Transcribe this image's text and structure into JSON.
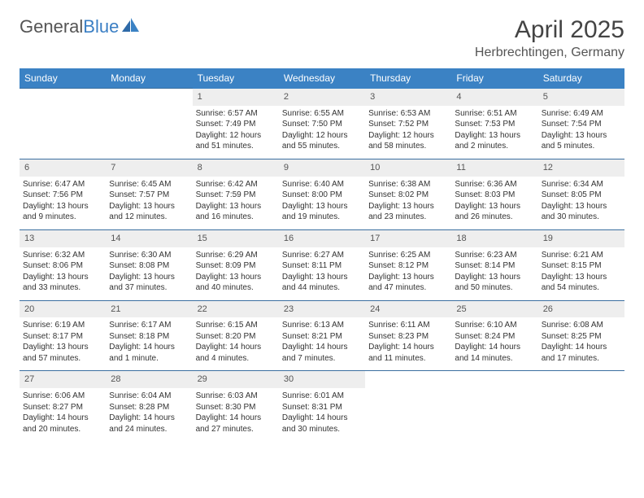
{
  "logo": {
    "text1": "General",
    "text2": "Blue"
  },
  "title": "April 2025",
  "location": "Herbrechtingen, Germany",
  "colors": {
    "header_bg": "#3b82c4",
    "header_text": "#ffffff",
    "daynum_bg": "#eeeeee",
    "border": "#3b6fa0",
    "body_text": "#333333",
    "logo_gray": "#555555",
    "logo_blue": "#3b7fc4"
  },
  "dayHeaders": [
    "Sunday",
    "Monday",
    "Tuesday",
    "Wednesday",
    "Thursday",
    "Friday",
    "Saturday"
  ],
  "weeks": [
    [
      null,
      null,
      {
        "n": "1",
        "sr": "6:57 AM",
        "ss": "7:49 PM",
        "dl": "12 hours and 51 minutes."
      },
      {
        "n": "2",
        "sr": "6:55 AM",
        "ss": "7:50 PM",
        "dl": "12 hours and 55 minutes."
      },
      {
        "n": "3",
        "sr": "6:53 AM",
        "ss": "7:52 PM",
        "dl": "12 hours and 58 minutes."
      },
      {
        "n": "4",
        "sr": "6:51 AM",
        "ss": "7:53 PM",
        "dl": "13 hours and 2 minutes."
      },
      {
        "n": "5",
        "sr": "6:49 AM",
        "ss": "7:54 PM",
        "dl": "13 hours and 5 minutes."
      }
    ],
    [
      {
        "n": "6",
        "sr": "6:47 AM",
        "ss": "7:56 PM",
        "dl": "13 hours and 9 minutes."
      },
      {
        "n": "7",
        "sr": "6:45 AM",
        "ss": "7:57 PM",
        "dl": "13 hours and 12 minutes."
      },
      {
        "n": "8",
        "sr": "6:42 AM",
        "ss": "7:59 PM",
        "dl": "13 hours and 16 minutes."
      },
      {
        "n": "9",
        "sr": "6:40 AM",
        "ss": "8:00 PM",
        "dl": "13 hours and 19 minutes."
      },
      {
        "n": "10",
        "sr": "6:38 AM",
        "ss": "8:02 PM",
        "dl": "13 hours and 23 minutes."
      },
      {
        "n": "11",
        "sr": "6:36 AM",
        "ss": "8:03 PM",
        "dl": "13 hours and 26 minutes."
      },
      {
        "n": "12",
        "sr": "6:34 AM",
        "ss": "8:05 PM",
        "dl": "13 hours and 30 minutes."
      }
    ],
    [
      {
        "n": "13",
        "sr": "6:32 AM",
        "ss": "8:06 PM",
        "dl": "13 hours and 33 minutes."
      },
      {
        "n": "14",
        "sr": "6:30 AM",
        "ss": "8:08 PM",
        "dl": "13 hours and 37 minutes."
      },
      {
        "n": "15",
        "sr": "6:29 AM",
        "ss": "8:09 PM",
        "dl": "13 hours and 40 minutes."
      },
      {
        "n": "16",
        "sr": "6:27 AM",
        "ss": "8:11 PM",
        "dl": "13 hours and 44 minutes."
      },
      {
        "n": "17",
        "sr": "6:25 AM",
        "ss": "8:12 PM",
        "dl": "13 hours and 47 minutes."
      },
      {
        "n": "18",
        "sr": "6:23 AM",
        "ss": "8:14 PM",
        "dl": "13 hours and 50 minutes."
      },
      {
        "n": "19",
        "sr": "6:21 AM",
        "ss": "8:15 PM",
        "dl": "13 hours and 54 minutes."
      }
    ],
    [
      {
        "n": "20",
        "sr": "6:19 AM",
        "ss": "8:17 PM",
        "dl": "13 hours and 57 minutes."
      },
      {
        "n": "21",
        "sr": "6:17 AM",
        "ss": "8:18 PM",
        "dl": "14 hours and 1 minute."
      },
      {
        "n": "22",
        "sr": "6:15 AM",
        "ss": "8:20 PM",
        "dl": "14 hours and 4 minutes."
      },
      {
        "n": "23",
        "sr": "6:13 AM",
        "ss": "8:21 PM",
        "dl": "14 hours and 7 minutes."
      },
      {
        "n": "24",
        "sr": "6:11 AM",
        "ss": "8:23 PM",
        "dl": "14 hours and 11 minutes."
      },
      {
        "n": "25",
        "sr": "6:10 AM",
        "ss": "8:24 PM",
        "dl": "14 hours and 14 minutes."
      },
      {
        "n": "26",
        "sr": "6:08 AM",
        "ss": "8:25 PM",
        "dl": "14 hours and 17 minutes."
      }
    ],
    [
      {
        "n": "27",
        "sr": "6:06 AM",
        "ss": "8:27 PM",
        "dl": "14 hours and 20 minutes."
      },
      {
        "n": "28",
        "sr": "6:04 AM",
        "ss": "8:28 PM",
        "dl": "14 hours and 24 minutes."
      },
      {
        "n": "29",
        "sr": "6:03 AM",
        "ss": "8:30 PM",
        "dl": "14 hours and 27 minutes."
      },
      {
        "n": "30",
        "sr": "6:01 AM",
        "ss": "8:31 PM",
        "dl": "14 hours and 30 minutes."
      },
      null,
      null,
      null
    ]
  ],
  "labels": {
    "sunrise": "Sunrise: ",
    "sunset": "Sunset: ",
    "daylight": "Daylight: "
  }
}
